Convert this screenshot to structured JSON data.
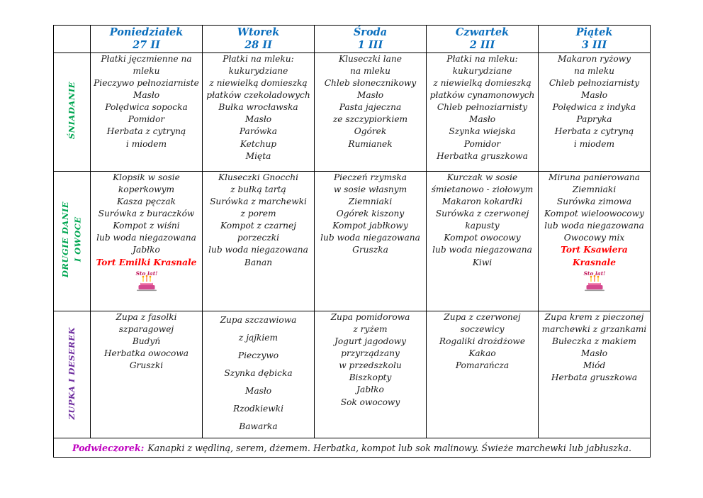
{
  "colors": {
    "header_blue": "#0a6ebd",
    "green": "#00a651",
    "purple": "#7030a0",
    "red": "#ff0000",
    "magenta": "#bf00bf"
  },
  "days": [
    {
      "name": "Poniedziałek",
      "date": "27 II"
    },
    {
      "name": "Wtorek",
      "date": "28 II"
    },
    {
      "name": "Środa",
      "date": "1 III"
    },
    {
      "name": "Czwartek",
      "date": "2 III"
    },
    {
      "name": "Piątek",
      "date": "3 III"
    }
  ],
  "sections": [
    {
      "label": "ŚNIADANIE",
      "label_color": "#00a651",
      "cells": [
        {
          "lines": [
            "Płatki jęczmienne na mleku",
            "Pieczywo pełnoziarniste",
            "Masło",
            "Polędwica sopocka",
            "Pomidor",
            "Herbata z cytryną",
            "i miodem"
          ]
        },
        {
          "lines": [
            "Płatki na mleku:",
            "kukurydziane",
            "z niewielką domieszką",
            "płatków czekoladowych",
            "Bułka wrocławska",
            "Masło",
            "Parówka",
            "Ketchup",
            "Mięta"
          ]
        },
        {
          "lines": [
            "Kluseczki lane",
            "na mleku",
            "Chleb słonecznikowy",
            "Masło",
            "Pasta jajeczna",
            "ze szczypiorkiem",
            "Ogórek",
            "Rumianek"
          ]
        },
        {
          "lines": [
            "Płatki na mleku:",
            "kukurydziane",
            "z niewielką domieszką",
            "płatków cynamonowych",
            "Chleb pełnoziarnisty",
            "Masło",
            "Szynka wiejska",
            "Pomidor",
            "Herbatka gruszkowa"
          ]
        },
        {
          "lines": [
            "Makaron ryżowy",
            "na mleku",
            "Chleb pełnoziarnisty",
            "Masło",
            "Polędwica z indyka",
            "Papryka",
            "Herbata z cytryną",
            "i miodem"
          ]
        }
      ]
    },
    {
      "label": "DRUGIE DANIE\nI OWOCE",
      "label_color": "#00a651",
      "cells": [
        {
          "lines": [
            "Klopsik w sosie",
            "koperkowym",
            "Kasza pęczak",
            "Surówka z buraczków",
            "Kompot z wiśni",
            "lub woda niegazowana",
            "Jabłko",
            {
              "text": "Tort Emilki Krasnale",
              "color": "#ff0000",
              "bold": true
            },
            {
              "icon": "birthday-cake"
            }
          ]
        },
        {
          "lines": [
            "Kluseczki Gnocchi",
            "z bułką tartą",
            "Surówka z marchewki",
            "z porem",
            "Kompot z czarnej",
            "porzeczki",
            "lub woda niegazowana",
            "Banan"
          ]
        },
        {
          "lines": [
            "Pieczeń rzymska",
            "w sosie własnym",
            "Ziemniaki",
            "Ogórek kiszony",
            "Kompot jabłkowy",
            "lub woda niegazowana",
            "Gruszka"
          ]
        },
        {
          "lines": [
            "Kurczak w sosie",
            "śmietanowo - ziołowym",
            "Makaron kokardki",
            "Surówka z czerwonej",
            "kapusty",
            "Kompot owocowy",
            "lub woda niegazowana",
            "Kiwi"
          ]
        },
        {
          "lines": [
            "Miruna panierowana",
            "Ziemniaki",
            "Surówka zimowa",
            "Kompot wieloowocowy",
            "lub woda niegazowana",
            "Owocowy mix",
            {
              "text": "Tort Ksawiera",
              "color": "#ff0000",
              "bold": true
            },
            {
              "text": "Krasnale",
              "color": "#ff0000",
              "bold": true
            },
            {
              "icon": "birthday-cake"
            }
          ]
        }
      ]
    },
    {
      "label": "ZUPKA I DESEREK",
      "label_color": "#7030a0",
      "cells": [
        {
          "lines": [
            "Zupa z fasolki szparagowej",
            "Budyń",
            "Herbatka owocowa",
            "Gruszki"
          ]
        },
        {
          "wide": true,
          "lines": [
            "Zupa szczawiowa",
            "z jajkiem",
            "Pieczywo",
            "Szynka dębicka",
            "Masło",
            "Rzodkiewki",
            "Bawarka"
          ]
        },
        {
          "lines": [
            "Zupa pomidorowa",
            "z ryżem",
            "Jogurt jagodowy",
            "przyrządzany",
            "w przedszkolu",
            "Biszkopty",
            "Jabłko",
            "Sok owocowy"
          ]
        },
        {
          "lines": [
            "Zupa z czerwonej",
            "soczewicy",
            "Rogaliki drożdżowe",
            "Kakao",
            "Pomarańcza"
          ]
        },
        {
          "lines": [
            "Zupa krem z pieczonej",
            "marchewki z grzankami",
            "Bułeczka z makiem",
            "Masło",
            "Miód",
            "Herbata gruszkowa"
          ]
        }
      ]
    }
  ],
  "footer": {
    "label": "Podwieczorek:",
    "text": "Kanapki z wędliną, serem, dżemem. Herbatka, kompot lub sok malinowy. Świeże marchewki lub jabłuszka."
  },
  "birthday_icon": {
    "caption": "Sto lat!"
  }
}
